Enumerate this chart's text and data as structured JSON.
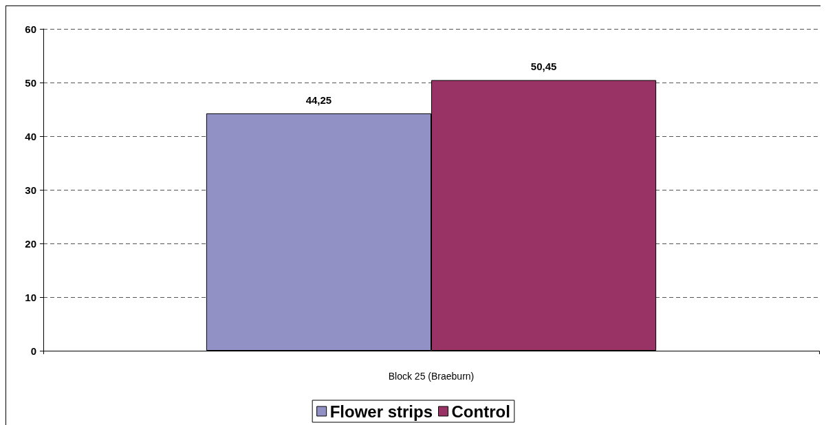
{
  "chart_data": {
    "type": "bar",
    "categories": [
      "Block 25 (Braeburn)"
    ],
    "series": [
      {
        "name": "Flower strips",
        "color": "#9191c6",
        "values": [
          44.25
        ],
        "value_labels": [
          "44,25"
        ]
      },
      {
        "name": "Control",
        "color": "#993366",
        "values": [
          50.45
        ],
        "value_labels": [
          "50,45"
        ]
      }
    ],
    "ylim": [
      0,
      60
    ],
    "yticks": [
      0,
      10,
      20,
      30,
      40,
      50,
      60
    ],
    "grid": "y",
    "legend": "bottom"
  }
}
